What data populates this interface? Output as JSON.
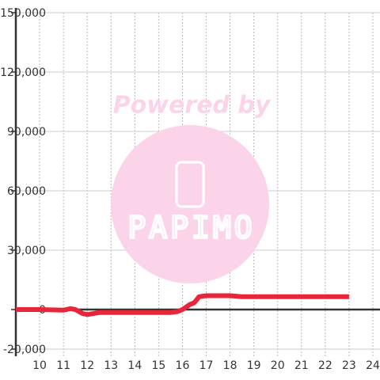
{
  "chart_data": {
    "type": "line",
    "x": [
      9,
      10,
      11,
      11.3,
      11.5,
      11.8,
      12,
      12.5,
      13,
      15.5,
      15.8,
      16,
      16.3,
      16.5,
      16.7,
      17,
      18,
      18.5,
      23
    ],
    "series": [
      {
        "color": "#e8253a",
        "values": [
          0,
          0,
          -300,
          500,
          0,
          -2000,
          -2500,
          -1500,
          -1500,
          -1500,
          -1000,
          0,
          2500,
          3500,
          6500,
          7000,
          7000,
          6500,
          6500
        ]
      }
    ],
    "xlim": [
      9,
      24.3
    ],
    "xticks": [
      10,
      11,
      12,
      13,
      14,
      15,
      16,
      17,
      18,
      19,
      20,
      21,
      22,
      23,
      24
    ],
    "ylim": [
      -20000,
      150000
    ],
    "yticks": [
      {
        "value": 150000,
        "label": "150,000"
      },
      {
        "value": 120000,
        "label": "120,000"
      },
      {
        "value": 90000,
        "label": "90,000"
      },
      {
        "value": 60000,
        "label": "60,000"
      },
      {
        "value": 30000,
        "label": "30,000"
      },
      0,
      {
        "value": -20000,
        "label": "-20,000"
      }
    ],
    "grid": true,
    "watermark": {
      "line1": "Powered by",
      "line2": "PAPIMO"
    }
  }
}
